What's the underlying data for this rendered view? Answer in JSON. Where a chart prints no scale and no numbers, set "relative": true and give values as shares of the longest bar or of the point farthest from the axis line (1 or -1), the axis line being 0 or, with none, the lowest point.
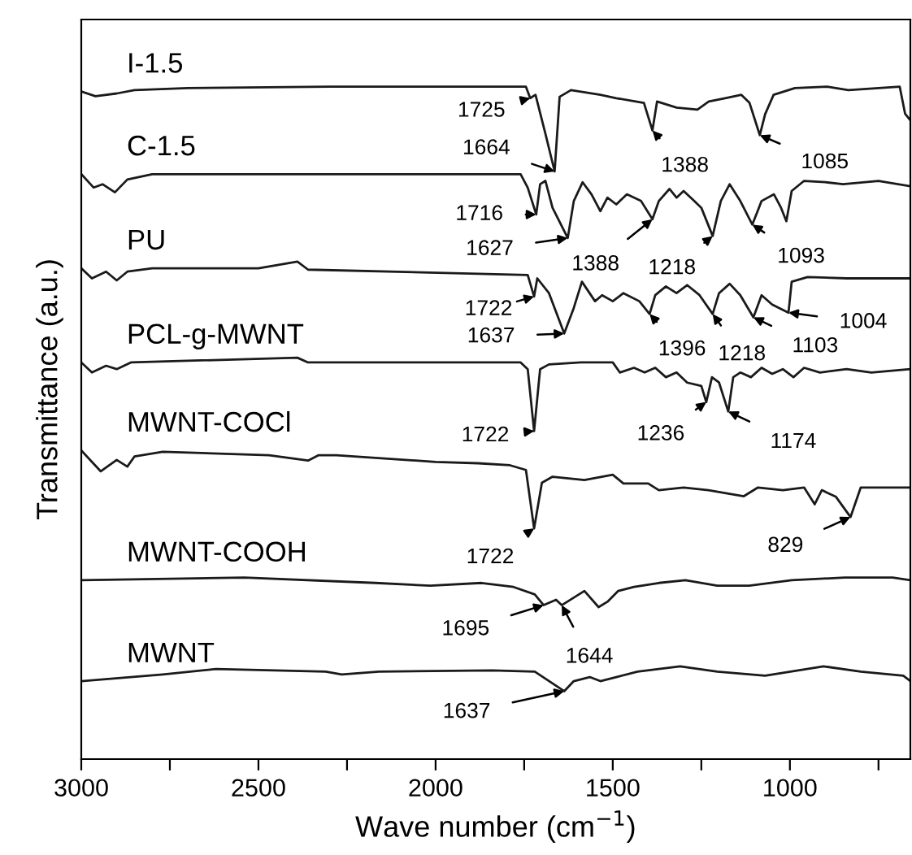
{
  "chart_data": {
    "type": "line",
    "relative": true,
    "xlabel": "Wave number (cm$^{−1}$)",
    "ylabel": "Transmittance (a.u.)",
    "xlim": [
      3000,
      660
    ],
    "xticks": [
      3000,
      {
        "value": 2750,
        "label": null
      },
      2500,
      {
        "value": 2250,
        "label": null
      },
      2000,
      {
        "value": 1750,
        "label": null
      },
      1500,
      {
        "value": 1250,
        "label": null
      },
      1000,
      {
        "value": 750,
        "label": null
      }
    ],
    "grid": false,
    "legend": false,
    "marker": "none",
    "line_style": "solid",
    "series": [
      {
        "name": "I-1.5",
        "color": "#1a1a1a",
        "x": [
          3000,
          2960,
          2900,
          2850,
          2700,
          2300,
          1745,
          1733,
          1718,
          1690,
          1664,
          1650,
          1618,
          1535,
          1490,
          1412,
          1388,
          1375,
          1320,
          1261,
          1229,
          1183,
          1137,
          1114,
          1085,
          1070,
          1046,
          986,
          895,
          835,
          690,
          675,
          660
        ],
        "values": [
          0.993,
          0.986,
          0.99,
          0.995,
          0.998,
          1.0,
          1.0,
          0.983,
          0.988,
          0.93,
          0.874,
          0.985,
          0.995,
          0.988,
          0.983,
          0.976,
          0.935,
          0.978,
          0.969,
          0.966,
          0.978,
          0.983,
          0.988,
          0.976,
          0.928,
          0.959,
          0.988,
          0.998,
          1.0,
          0.995,
          1.0,
          0.96,
          0.95
        ]
      },
      {
        "name": "C-1.5",
        "color": "#1a1a1a",
        "x": [
          3000,
          2965,
          2940,
          2905,
          2870,
          2800,
          1760,
          1740,
          1716,
          1705,
          1690,
          1670,
          1627,
          1610,
          1585,
          1560,
          1535,
          1515,
          1490,
          1460,
          1420,
          1388,
          1370,
          1340,
          1320,
          1300,
          1270,
          1250,
          1218,
          1195,
          1170,
          1140,
          1106,
          1080,
          1045,
          1025,
          1010,
          995,
          960,
          900,
          850,
          750,
          660
        ],
        "values": [
          0.87,
          0.85,
          0.855,
          0.843,
          0.862,
          0.87,
          0.87,
          0.85,
          0.81,
          0.855,
          0.86,
          0.82,
          0.775,
          0.83,
          0.858,
          0.84,
          0.815,
          0.835,
          0.825,
          0.84,
          0.83,
          0.803,
          0.83,
          0.848,
          0.835,
          0.845,
          0.83,
          0.82,
          0.778,
          0.83,
          0.855,
          0.83,
          0.795,
          0.83,
          0.84,
          0.82,
          0.8,
          0.845,
          0.86,
          0.858,
          0.855,
          0.86,
          0.852
        ]
      },
      {
        "name": "PU",
        "color": "#1a1a1a",
        "x": [
          3000,
          2970,
          2930,
          2900,
          2870,
          2800,
          2500,
          2390,
          2360,
          1740,
          1722,
          1713,
          1680,
          1637,
          1610,
          1587,
          1550,
          1530,
          1500,
          1470,
          1425,
          1396,
          1380,
          1350,
          1320,
          1290,
          1255,
          1218,
          1200,
          1170,
          1140,
          1103,
          1080,
          1050,
          1004,
          995,
          950,
          840,
          660
        ],
        "values": [
          0.73,
          0.715,
          0.725,
          0.712,
          0.725,
          0.73,
          0.73,
          0.74,
          0.728,
          0.72,
          0.688,
          0.715,
          0.693,
          0.633,
          0.671,
          0.71,
          0.681,
          0.69,
          0.681,
          0.693,
          0.681,
          0.662,
          0.69,
          0.703,
          0.693,
          0.705,
          0.69,
          0.662,
          0.693,
          0.707,
          0.69,
          0.657,
          0.69,
          0.676,
          0.664,
          0.71,
          0.717,
          0.715,
          0.715
        ]
      },
      {
        "name": "PCL-g-MWNT",
        "color": "#1a1a1a",
        "x": [
          3000,
          2970,
          2930,
          2900,
          2860,
          2390,
          2360,
          1760,
          1740,
          1722,
          1705,
          1680,
          1590,
          1500,
          1480,
          1440,
          1410,
          1380,
          1350,
          1320,
          1290,
          1250,
          1236,
          1220,
          1200,
          1174,
          1160,
          1140,
          1110,
          1080,
          1050,
          1020,
          990,
          960,
          915,
          840,
          770,
          660
        ],
        "values": [
          0.59,
          0.575,
          0.585,
          0.58,
          0.59,
          0.597,
          0.59,
          0.59,
          0.58,
          0.488,
          0.58,
          0.587,
          0.59,
          0.59,
          0.575,
          0.582,
          0.575,
          0.582,
          0.568,
          0.575,
          0.56,
          0.555,
          0.531,
          0.568,
          0.56,
          0.517,
          0.568,
          0.575,
          0.568,
          0.582,
          0.573,
          0.58,
          0.568,
          0.582,
          0.575,
          0.58,
          0.575,
          0.58
        ]
      },
      {
        "name": "MWNT-COCl",
        "color": "#1a1a1a",
        "x": [
          3000,
          2945,
          2900,
          2870,
          2850,
          2770,
          2470,
          2360,
          2330,
          2280,
          2000,
          1880,
          1790,
          1745,
          1722,
          1700,
          1670,
          1580,
          1500,
          1470,
          1400,
          1370,
          1300,
          1230,
          1130,
          1090,
          1020,
          960,
          930,
          910,
          870,
          829,
          800,
          740,
          660
        ],
        "values": [
          0.459,
          0.428,
          0.445,
          0.435,
          0.45,
          0.457,
          0.452,
          0.444,
          0.452,
          0.452,
          0.442,
          0.44,
          0.437,
          0.43,
          0.343,
          0.411,
          0.42,
          0.415,
          0.423,
          0.41,
          0.41,
          0.4,
          0.404,
          0.4,
          0.391,
          0.404,
          0.4,
          0.404,
          0.379,
          0.4,
          0.39,
          0.36,
          0.404,
          0.404,
          0.404
        ]
      },
      {
        "name": "MWNT-COOH",
        "color": "#1a1a1a",
        "x": [
          3000,
          2540,
          2170,
          2015,
          1870,
          1780,
          1720,
          1695,
          1660,
          1644,
          1580,
          1540,
          1515,
          1485,
          1440,
          1370,
          1295,
          1205,
          1115,
          995,
          845,
          710,
          660
        ],
        "values": [
          0.266,
          0.27,
          0.262,
          0.258,
          0.262,
          0.256,
          0.245,
          0.229,
          0.237,
          0.229,
          0.25,
          0.226,
          0.234,
          0.25,
          0.256,
          0.262,
          0.266,
          0.258,
          0.258,
          0.266,
          0.27,
          0.27,
          0.266
        ]
      },
      {
        "name": "MWNT",
        "color": "#1a1a1a",
        "x": [
          3000,
          2770,
          2620,
          2310,
          2265,
          2160,
          1840,
          1720,
          1637,
          1610,
          1565,
          1535,
          1490,
          1430,
          1310,
          1205,
          1070,
          905,
          800,
          680,
          660
        ],
        "values": [
          0.116,
          0.126,
          0.134,
          0.13,
          0.126,
          0.13,
          0.132,
          0.13,
          0.101,
          0.116,
          0.122,
          0.116,
          0.122,
          0.13,
          0.138,
          0.13,
          0.124,
          0.138,
          0.13,
          0.124,
          0.116
        ]
      }
    ],
    "annotations": [
      {
        "text": "1725",
        "x": 1733,
        "y": 0.983
      },
      {
        "text": "1664",
        "x": 1664,
        "y": 0.874
      },
      {
        "text": "1388",
        "x": 1388,
        "y": 0.935
      },
      {
        "text": "1085",
        "x": 1085,
        "y": 0.928
      },
      {
        "text": "1716",
        "x": 1716,
        "y": 0.81
      },
      {
        "text": "1627",
        "x": 1627,
        "y": 0.775
      },
      {
        "text": "1388",
        "x": 1388,
        "y": 0.803
      },
      {
        "text": "1218",
        "x": 1218,
        "y": 0.778
      },
      {
        "text": "1093",
        "x": 1106,
        "y": 0.795
      },
      {
        "text": "1722",
        "x": 1722,
        "y": 0.688
      },
      {
        "text": "1637",
        "x": 1637,
        "y": 0.633
      },
      {
        "text": "1396",
        "x": 1396,
        "y": 0.662
      },
      {
        "text": "1218",
        "x": 1218,
        "y": 0.662
      },
      {
        "text": "1103",
        "x": 1103,
        "y": 0.657
      },
      {
        "text": "1004",
        "x": 1004,
        "y": 0.664
      },
      {
        "text": "1722",
        "x": 1722,
        "y": 0.488
      },
      {
        "text": "1236",
        "x": 1236,
        "y": 0.531
      },
      {
        "text": "1174",
        "x": 1174,
        "y": 0.517
      },
      {
        "text": "1722",
        "x": 1722,
        "y": 0.343
      },
      {
        "text": "829",
        "x": 829,
        "y": 0.36
      },
      {
        "text": "1695",
        "x": 1695,
        "y": 0.229
      },
      {
        "text": "1644",
        "x": 1644,
        "y": 0.229
      },
      {
        "text": "1637",
        "x": 1637,
        "y": 0.101
      }
    ]
  }
}
